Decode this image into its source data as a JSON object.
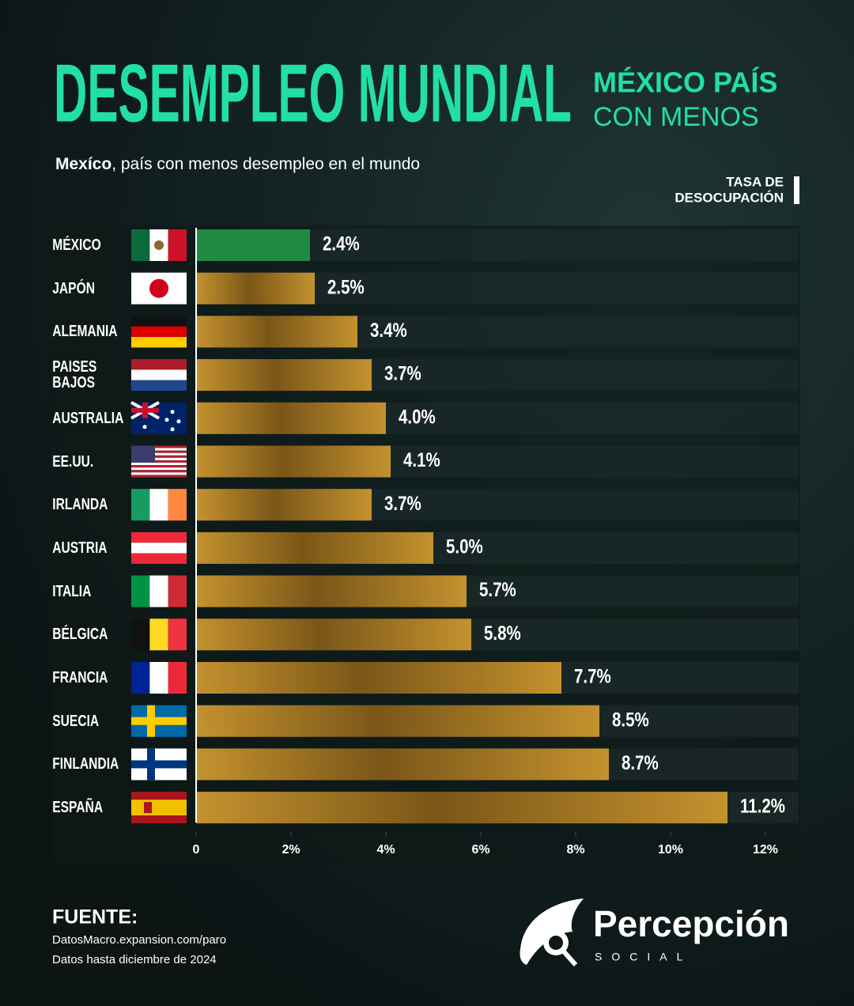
{
  "chart_data": {
    "type": "bar",
    "orientation": "horizontal",
    "title": "DESEMPLEO MUNDIAL",
    "side_title": [
      "MÉXICO PAÍS",
      "CON MENOS"
    ],
    "subtitle": [
      "Mexíco",
      ", país con menos desempleo en el mundo"
    ],
    "axis_label": [
      "TASA DE",
      "DESOCUPACIÓN"
    ],
    "categories": [
      "MÉXICO",
      "JAPÓN",
      "ALEMANIA",
      "PAISES BAJOS",
      "AUSTRALIA",
      "EE.UU.",
      "IRLANDA",
      "AUSTRIA",
      "ITALIA",
      "BÉLGICA",
      "FRANCIA",
      "SUECIA",
      "FINLANDIA",
      "ESPAÑA"
    ],
    "values": [
      2.4,
      2.5,
      3.4,
      3.7,
      4.0,
      4.1,
      3.7,
      5.0,
      5.7,
      5.8,
      7.7,
      8.5,
      8.7,
      11.2
    ],
    "value_labels": [
      "2.4%",
      "2.5%",
      "3.4%",
      "3.7%",
      "4.0%",
      "4.1%",
      "3.7%",
      "5.0%",
      "5.7%",
      "5.8%",
      "7.7%",
      "8.5%",
      "8.7%",
      "11.2%"
    ],
    "colors": [
      "#1f8a42",
      "#b07f24",
      "#b07f24",
      "#b07f24",
      "#b07f24",
      "#b07f24",
      "#b07f24",
      "#b07f24",
      "#b07f24",
      "#b07f24",
      "#b07f24",
      "#b07f24",
      "#b07f24",
      "#b07f24"
    ],
    "xlim": [
      0,
      12.7
    ],
    "xticks": [
      0,
      {
        "value": 2,
        "label": "2%"
      },
      {
        "value": 4,
        "label": "4%"
      },
      {
        "value": 6,
        "label": "6%"
      },
      {
        "value": 8,
        "label": "8%"
      },
      {
        "value": 10,
        "label": "10%"
      },
      {
        "value": 12,
        "label": "12%"
      }
    ],
    "grid": false
  },
  "footer": {
    "heading": "FUENTE:",
    "lines": [
      "DatosMacro.expansion.com/paro",
      "Datos hasta diciembre de 2024"
    ]
  },
  "brand": {
    "name": "Percepción",
    "tagline": "SOCIAL"
  }
}
